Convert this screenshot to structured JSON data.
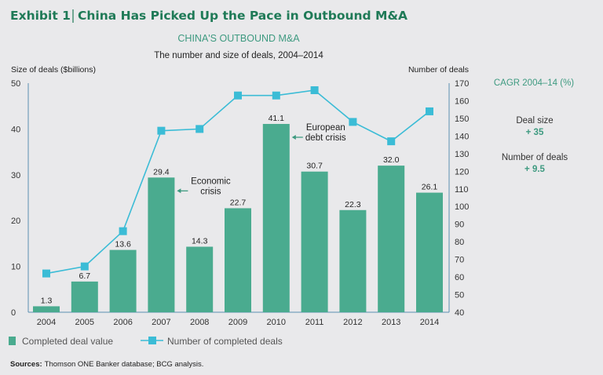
{
  "header": {
    "exhibit": "Exhibit 1",
    "title": "China Has Picked Up the Pace in Outbound M&A"
  },
  "chart_data": {
    "type": "bar",
    "title": "CHINA'S OUTBOUND M&A",
    "subtitle": "The number and size of deals, 2004–2014",
    "ylabel": "Size of deals ($billions)",
    "y2label": "Number of deals",
    "ylim": [
      0,
      50
    ],
    "y2lim": [
      40,
      170
    ],
    "yticks": [
      "0",
      "10",
      "20",
      "30",
      "40",
      "50"
    ],
    "y2ticks": [
      "40",
      "50",
      "60",
      "70",
      "80",
      "90",
      "100",
      "110",
      "120",
      "130",
      "140",
      "150",
      "160",
      "170"
    ],
    "categories": [
      "2004",
      "2005",
      "2006",
      "2007",
      "2008",
      "2009",
      "2010",
      "2011",
      "2012",
      "2013",
      "2014"
    ],
    "series": [
      {
        "name": "Completed deal value",
        "type": "bar",
        "axis": "left",
        "color": "#4aab8f",
        "values": [
          1.3,
          6.7,
          13.6,
          29.4,
          14.3,
          22.7,
          41.1,
          30.7,
          22.3,
          32.0,
          26.1
        ],
        "labels": [
          "1.3",
          "6.7",
          "13.6",
          "29.4",
          "14.3",
          "22.7",
          "41.1",
          "30.7",
          "22.3",
          "32.0",
          "26.1"
        ]
      },
      {
        "name": "Number of completed deals",
        "type": "line",
        "axis": "right",
        "color": "#3bbcd6",
        "values": [
          62,
          66,
          86,
          143,
          144,
          163,
          163,
          166,
          148,
          137,
          154
        ]
      }
    ],
    "annotations": [
      {
        "category": "2007",
        "lines": [
          "Economic",
          "crisis"
        ]
      },
      {
        "category": "2010",
        "lines": [
          "European",
          "debt crisis"
        ]
      }
    ],
    "legend_position": "bottom-left",
    "grid": false
  },
  "cagr": {
    "title": "CAGR 2004–14 (%)",
    "items": [
      {
        "label": "Deal size",
        "value": "+ 35"
      },
      {
        "label": "Number of deals",
        "value": "+ 9.5"
      }
    ]
  },
  "footer": {
    "sources_label": "Sources:",
    "sources_text": "Thomson ONE Banker database; BCG analysis."
  }
}
